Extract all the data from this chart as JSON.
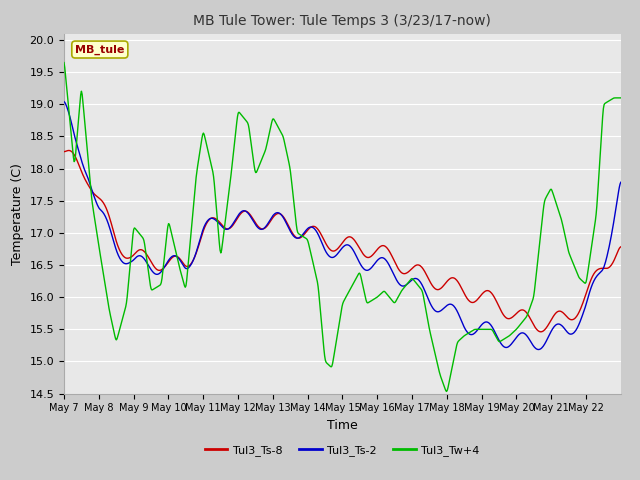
{
  "title": "MB Tule Tower: Tule Temps 3 (3/23/17-now)",
  "xlabel": "Time",
  "ylabel": "Temperature (C)",
  "ylim": [
    14.5,
    20.1
  ],
  "yticks": [
    14.5,
    15.0,
    15.5,
    16.0,
    16.5,
    17.0,
    17.5,
    18.0,
    18.5,
    19.0,
    19.5,
    20.0
  ],
  "fig_bg": "#cccccc",
  "plot_bg": "#e8e8e8",
  "grid_color": "#ffffff",
  "line_red": "#cc0000",
  "line_blue": "#0000cc",
  "line_green": "#00bb00",
  "legend_box_label": "MB_tule",
  "legend_labels": [
    "Tul3_Ts-8",
    "Tul3_Ts-2",
    "Tul3_Tw+4"
  ],
  "x_tick_labels": [
    "May 7",
    "May 8",
    "May 9",
    "May 10",
    "May 11",
    "May 12",
    "May 13",
    "May 14",
    "May 15",
    "May 16",
    "May 17",
    "May 18",
    "May 19",
    "May 20",
    "May 21",
    "May 22"
  ],
  "n_days": 16
}
